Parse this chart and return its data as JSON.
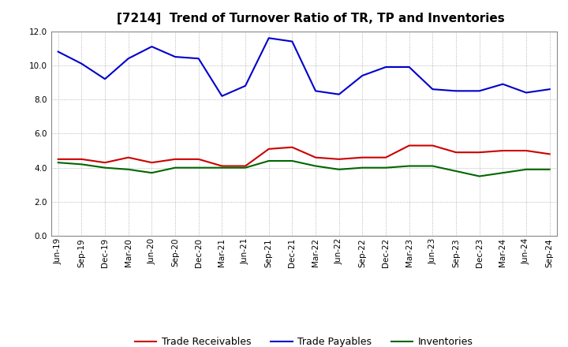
{
  "title": "[7214]  Trend of Turnover Ratio of TR, TP and Inventories",
  "labels": [
    "Jun-19",
    "Sep-19",
    "Dec-19",
    "Mar-20",
    "Jun-20",
    "Sep-20",
    "Dec-20",
    "Mar-21",
    "Jun-21",
    "Sep-21",
    "Dec-21",
    "Mar-22",
    "Jun-22",
    "Sep-22",
    "Dec-22",
    "Mar-23",
    "Jun-23",
    "Sep-23",
    "Dec-23",
    "Mar-24",
    "Jun-24",
    "Sep-24"
  ],
  "trade_receivables": [
    4.5,
    4.5,
    4.3,
    4.6,
    4.3,
    4.5,
    4.5,
    4.1,
    4.1,
    5.1,
    5.2,
    4.6,
    4.5,
    4.6,
    4.6,
    5.3,
    5.3,
    4.9,
    4.9,
    5.0,
    5.0,
    4.8
  ],
  "trade_payables": [
    10.8,
    10.1,
    9.2,
    10.4,
    11.1,
    10.5,
    10.4,
    8.2,
    8.8,
    11.6,
    11.4,
    8.5,
    8.3,
    9.4,
    9.9,
    9.9,
    8.6,
    8.5,
    8.5,
    8.9,
    8.4,
    8.6
  ],
  "inventories": [
    4.3,
    4.2,
    4.0,
    3.9,
    3.7,
    4.0,
    4.0,
    4.0,
    4.0,
    4.4,
    4.4,
    4.1,
    3.9,
    4.0,
    4.0,
    4.1,
    4.1,
    3.8,
    3.5,
    3.7,
    3.9,
    3.9
  ],
  "ylim": [
    0.0,
    12.0
  ],
  "yticks": [
    0.0,
    2.0,
    4.0,
    6.0,
    8.0,
    10.0,
    12.0
  ],
  "line_color_tr": "#cc0000",
  "line_color_tp": "#0000cc",
  "line_color_inv": "#006600",
  "legend_tr": "Trade Receivables",
  "legend_tp": "Trade Payables",
  "legend_inv": "Inventories",
  "background_color": "#ffffff",
  "grid_color": "#999999",
  "title_fontsize": 11,
  "tick_fontsize": 7.5,
  "legend_fontsize": 9
}
